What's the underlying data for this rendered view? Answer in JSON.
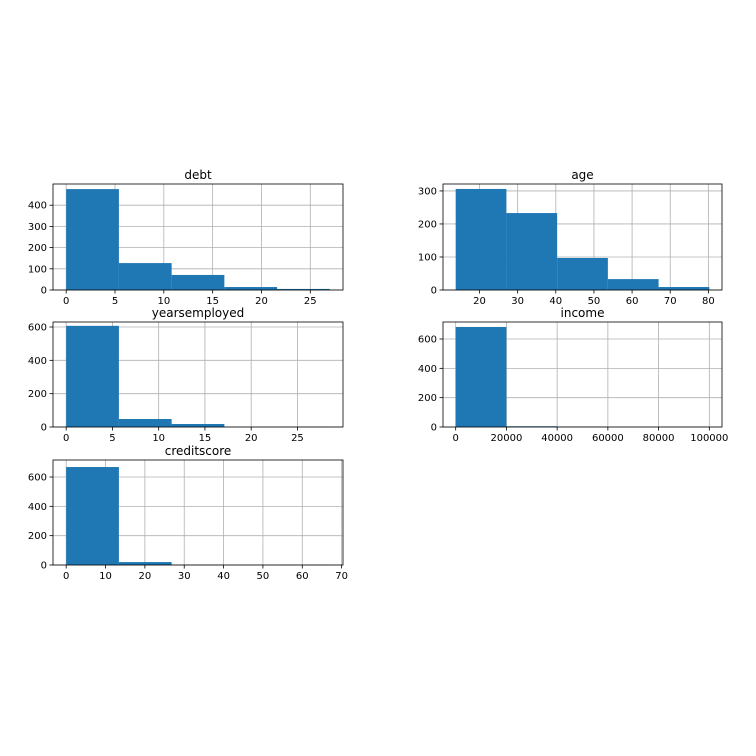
{
  "chart_data": [
    {
      "type": "histogram",
      "title": "debt",
      "bins": [
        0,
        5.4,
        10.8,
        16.2,
        21.6,
        27
      ],
      "values": [
        476,
        127,
        71,
        14,
        5
      ],
      "color": "#1f77b4",
      "xlim": [
        -1.35,
        28.35
      ],
      "ylim": [
        0,
        500
      ],
      "xticks": [
        0,
        5,
        10,
        15,
        20,
        25
      ],
      "yticks": [
        0,
        100,
        200,
        300,
        400
      ],
      "grid": true
    },
    {
      "type": "histogram",
      "title": "age",
      "bins": [
        13.75,
        27.05,
        40.35,
        53.65,
        66.95,
        80.25
      ],
      "values": [
        306,
        233,
        97,
        33,
        9
      ],
      "color": "#1f77b4",
      "xlim": [
        10.425,
        83.575
      ],
      "ylim": [
        0,
        321
      ],
      "xticks": [
        20,
        30,
        40,
        50,
        60,
        70,
        80
      ],
      "yticks": [
        0,
        100,
        200,
        300
      ],
      "grid": true
    },
    {
      "type": "histogram",
      "title": "yearsemployed",
      "bins": [
        0,
        5.7,
        11.4,
        17.1,
        22.8,
        28.5
      ],
      "values": [
        607,
        48,
        18,
        0,
        1
      ],
      "color": "#1f77b4",
      "xlim": [
        -1.425,
        29.925
      ],
      "ylim": [
        0,
        630
      ],
      "xticks": [
        0,
        5,
        10,
        15,
        20,
        25
      ],
      "yticks": [
        0,
        200,
        400,
        600
      ],
      "grid": true
    },
    {
      "type": "histogram",
      "title": "income",
      "bins": [
        0,
        20000,
        40000,
        60000,
        80000,
        100000
      ],
      "values": [
        682,
        5,
        2,
        0,
        1
      ],
      "color": "#1f77b4",
      "xlim": [
        -5000,
        105000
      ],
      "ylim": [
        0,
        716
      ],
      "xticks": [
        0,
        20000,
        40000,
        60000,
        80000,
        100000
      ],
      "yticks": [
        0,
        200,
        400,
        600
      ],
      "grid": true
    },
    {
      "type": "histogram",
      "title": "creditscore",
      "bins": [
        0,
        13.4,
        26.8,
        40.2,
        53.6,
        67
      ],
      "values": [
        668,
        20,
        1,
        0,
        1
      ],
      "color": "#1f77b4",
      "xlim": [
        -3.35,
        70.35
      ],
      "ylim": [
        0,
        716
      ],
      "xticks": [
        0,
        10,
        20,
        30,
        40,
        50,
        60,
        70
      ],
      "yticks": [
        0,
        200,
        400,
        600
      ],
      "grid": true
    }
  ]
}
